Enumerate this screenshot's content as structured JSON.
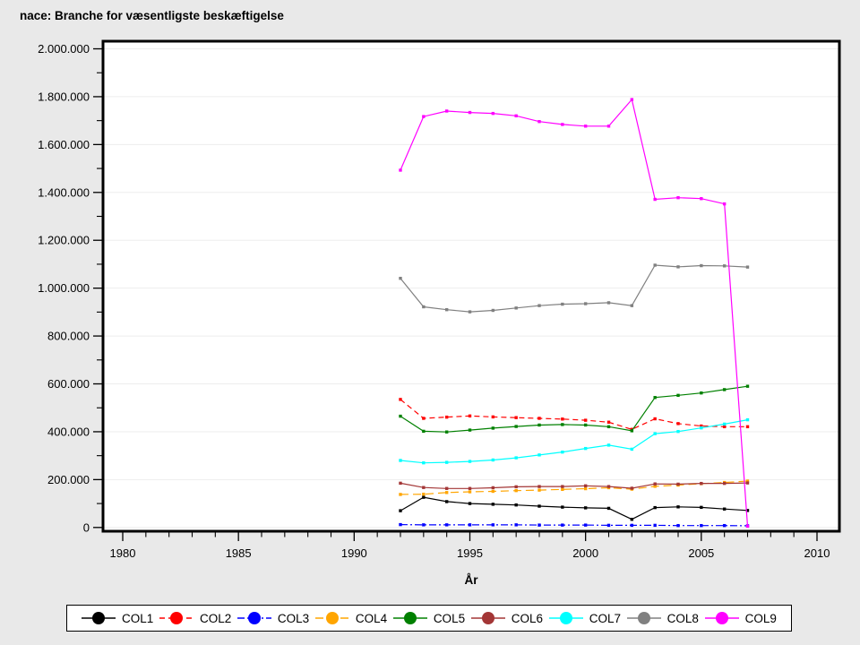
{
  "title": "nace: Branche for væsentligste beskæftigelse",
  "colors": {
    "figure_bg": "#E9E9E9",
    "plot_bg": "#FFFFFF",
    "grid": "#EDEDED",
    "frame": "#000000",
    "legend_bg": "#FFFFFF"
  },
  "chart_data": {
    "type": "line",
    "title": "nace: Branche for væsentligste beskæftigelse",
    "xlabel": "År",
    "ylabel": "",
    "grid": "horizontal-major",
    "legend_position": "bottom",
    "x_axis": {
      "min": 1979,
      "max": 2011,
      "major_ticks": [
        1980,
        1985,
        1990,
        1995,
        2000,
        2005,
        2010
      ],
      "tick_labels": [
        "1980",
        "1985",
        "1990",
        "1995",
        "2000",
        "2005",
        "2010"
      ],
      "minor_step": 1
    },
    "y_axis": {
      "min": 0,
      "max": 2000000,
      "major_step": 200000,
      "minor_step": 100000,
      "tick_labels": [
        "0",
        "200.000",
        "400.000",
        "600.000",
        "800.000",
        "1.000.000",
        "1.200.000",
        "1.400.000",
        "1.600.000",
        "1.800.000",
        "2.000.000"
      ]
    },
    "x": [
      1992,
      1993,
      1994,
      1995,
      1996,
      1997,
      1998,
      1999,
      2000,
      2001,
      2002,
      2003,
      2004,
      2005,
      2006,
      2007
    ],
    "series": [
      {
        "name": "COL1",
        "color": "#000000",
        "dash": "solid",
        "values": [
          70000,
          126000,
          108000,
          100000,
          97000,
          94000,
          89000,
          85000,
          82000,
          80000,
          34000,
          83000,
          86000,
          84000,
          77000,
          71000
        ]
      },
      {
        "name": "COL2",
        "color": "#FF0000",
        "dash": "dashed",
        "values": [
          535000,
          456000,
          461000,
          466000,
          462000,
          459000,
          456000,
          453000,
          448000,
          440000,
          410000,
          454000,
          434000,
          424000,
          421000,
          421000
        ]
      },
      {
        "name": "COL3",
        "color": "#0000FF",
        "dash": "dashdot",
        "values": [
          12000,
          11000,
          11000,
          11000,
          11000,
          11000,
          10000,
          10000,
          10000,
          9000,
          9000,
          9000,
          8000,
          8000,
          8000,
          7000
        ]
      },
      {
        "name": "COL4",
        "color": "#FFA500",
        "dash": "longdash",
        "values": [
          138000,
          139000,
          146000,
          149000,
          151000,
          154000,
          156000,
          159000,
          162000,
          166000,
          160000,
          172000,
          177000,
          183000,
          188000,
          194000
        ]
      },
      {
        "name": "COL5",
        "color": "#008000",
        "dash": "solid",
        "values": [
          465000,
          402000,
          399000,
          407000,
          415000,
          422000,
          428000,
          430000,
          428000,
          421000,
          404000,
          543000,
          552000,
          562000,
          576000,
          590000
        ]
      },
      {
        "name": "COL6",
        "color": "#A33636",
        "dash": "solid",
        "values": [
          185000,
          167000,
          163000,
          163000,
          166000,
          170000,
          171000,
          171000,
          174000,
          171000,
          164000,
          182000,
          181000,
          184000,
          184000,
          186000
        ]
      },
      {
        "name": "COL7",
        "color": "#00FFFF",
        "dash": "solid",
        "values": [
          280000,
          270000,
          272000,
          276000,
          282000,
          291000,
          303000,
          315000,
          330000,
          344000,
          327000,
          392000,
          401000,
          416000,
          432000,
          450000
        ]
      },
      {
        "name": "COL8",
        "color": "#808080",
        "dash": "solid",
        "values": [
          1041000,
          922000,
          910000,
          901000,
          907000,
          917000,
          927000,
          933000,
          935000,
          939000,
          927000,
          1096000,
          1089000,
          1094000,
          1093000,
          1088000
        ]
      },
      {
        "name": "COL9",
        "color": "#FF00FF",
        "dash": "solid",
        "values": [
          1493000,
          1717000,
          1740000,
          1734000,
          1730000,
          1720000,
          1696000,
          1684000,
          1677000,
          1677000,
          1788000,
          1371000,
          1378000,
          1374000,
          1352000,
          5000
        ]
      }
    ]
  }
}
